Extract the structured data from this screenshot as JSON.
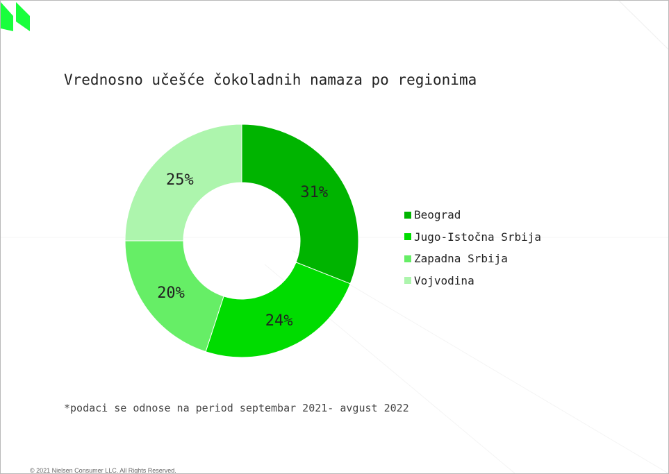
{
  "slide": {
    "title": "Vrednosno učešće čokoladnih namaza po regionima",
    "note": "*podaci se odnose na period septembar 2021- avgust 2022",
    "copyright": "© 2021 Nielsen Consumer LLC. All Rights Reserved.",
    "logo_color": "#19ff3c"
  },
  "chart_data": {
    "type": "pie",
    "variant": "donut",
    "title": "Vrednosno učešće čokoladnih namaza po regionima",
    "categories": [
      "Beograd",
      "Jugo-Istočna Srbija",
      "Zapadna Srbija",
      "Vojvodina"
    ],
    "values": [
      31,
      24,
      20,
      25
    ],
    "data_labels": [
      "31%",
      "24%",
      "20%",
      "25%"
    ],
    "unit": "%",
    "colors": [
      "#00b400",
      "#00dc00",
      "#66ee66",
      "#adf5ad"
    ],
    "legend_position": "right"
  }
}
